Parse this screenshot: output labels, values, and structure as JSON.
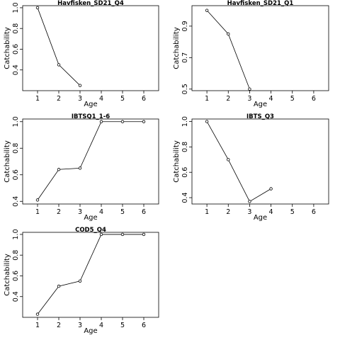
{
  "chart_data": [
    {
      "type": "line",
      "title": "Havfisken_SD21_Q4",
      "xlabel": "Age",
      "ylabel": "Catchability",
      "xlim": [
        0.3,
        6.7
      ],
      "ylim": [
        0.2,
        1.02
      ],
      "xticks": [
        1,
        2,
        3,
        4,
        5,
        6
      ],
      "yticks": [
        0.4,
        0.6,
        0.8,
        1.0
      ],
      "yticklabels": [
        "0.4",
        "0.6",
        "0.8",
        "1.0"
      ],
      "x": [
        1,
        2,
        3
      ],
      "values": [
        1.0,
        0.45,
        0.25
      ]
    },
    {
      "type": "line",
      "title": "Havfisken_SD21_Q1",
      "xlabel": "Age",
      "ylabel": "Catchability",
      "xlim": [
        0.3,
        6.7
      ],
      "ylim": [
        0.49,
        1.03
      ],
      "xticks": [
        1,
        2,
        3,
        4,
        5,
        6
      ],
      "yticks": [
        0.5,
        0.7,
        0.9
      ],
      "yticklabels": [
        "0.5",
        "0.7",
        "0.9"
      ],
      "x": [
        1,
        2,
        3
      ],
      "values": [
        1.0,
        0.85,
        0.5
      ]
    },
    {
      "type": "line",
      "title": "IBTSQ1_1-6",
      "xlabel": "Age",
      "ylabel": "Catchability",
      "xlim": [
        0.3,
        6.7
      ],
      "ylim": [
        0.38,
        1.02
      ],
      "xticks": [
        1,
        2,
        3,
        4,
        5,
        6
      ],
      "yticks": [
        0.4,
        0.6,
        0.8,
        1.0
      ],
      "yticklabels": [
        "0.4",
        "0.6",
        "0.8",
        "1.0"
      ],
      "x": [
        1,
        2,
        3,
        4,
        5,
        6
      ],
      "values": [
        0.41,
        0.64,
        0.65,
        1.0,
        1.0,
        1.0
      ]
    },
    {
      "type": "line",
      "title": "IBTS_Q3",
      "xlabel": "Age",
      "ylabel": "Catchability",
      "xlim": [
        0.3,
        6.7
      ],
      "ylim": [
        0.35,
        1.02
      ],
      "xticks": [
        1,
        2,
        3,
        4,
        5,
        6
      ],
      "yticks": [
        0.4,
        0.6,
        0.8,
        1.0
      ],
      "yticklabels": [
        "0.4",
        "0.6",
        "0.8",
        "1.0"
      ],
      "x": [
        1,
        2,
        3,
        4
      ],
      "values": [
        1.0,
        0.7,
        0.37,
        0.47
      ]
    },
    {
      "type": "line",
      "title": "COD5_Q4",
      "xlabel": "Age",
      "ylabel": "Catchability",
      "xlim": [
        0.3,
        6.7
      ],
      "ylim": [
        0.2,
        1.02
      ],
      "xticks": [
        1,
        2,
        3,
        4,
        5,
        6
      ],
      "yticks": [
        0.4,
        0.6,
        0.8,
        1.0
      ],
      "yticklabels": [
        "0.4",
        "0.6",
        "0.8",
        "1.0"
      ],
      "x": [
        1,
        2,
        3,
        4,
        5,
        6
      ],
      "values": [
        0.23,
        0.5,
        0.55,
        1.0,
        1.0,
        1.0
      ]
    }
  ]
}
